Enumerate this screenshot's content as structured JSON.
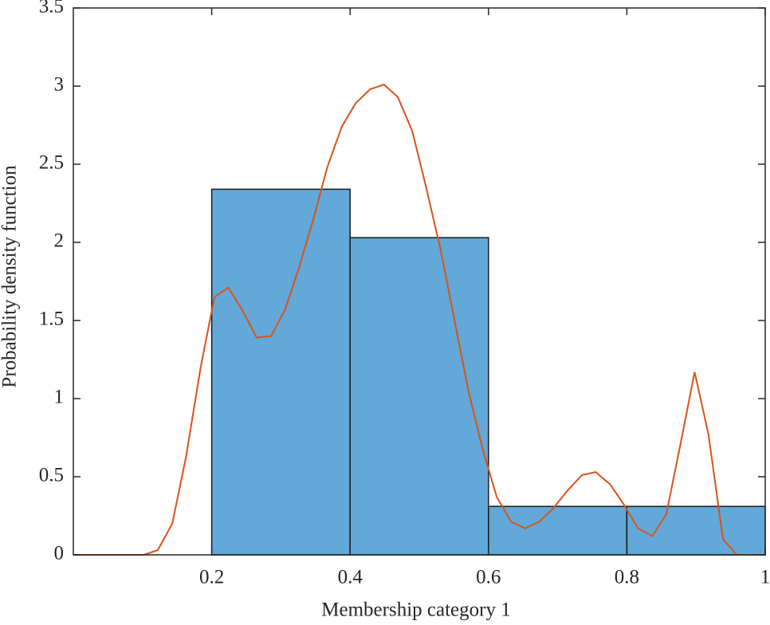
{
  "chart_data": [
    {
      "type": "histogram",
      "xlabel": "Membership category 1",
      "ylabel": "Probability density function",
      "bins": [
        0.2,
        0.4,
        0.6,
        0.8,
        1
      ],
      "values": [
        2.34,
        2.03,
        0.31,
        0.31
      ],
      "color": "#62a8d8",
      "xlim": [
        0,
        1
      ],
      "ylim": [
        0,
        3.5
      ],
      "xticks": [
        0.2,
        0.4,
        0.6,
        0.8,
        1
      ],
      "yticks": [
        0,
        0.5,
        1,
        1.5,
        2,
        2.5,
        3,
        3.5
      ]
    },
    {
      "type": "line",
      "color": "#d95319",
      "x": [
        0,
        0.02,
        0.041,
        0.061,
        0.082,
        0.102,
        0.122,
        0.143,
        0.163,
        0.184,
        0.204,
        0.224,
        0.245,
        0.265,
        0.286,
        0.306,
        0.327,
        0.347,
        0.367,
        0.388,
        0.408,
        0.429,
        0.449,
        0.469,
        0.49,
        0.51,
        0.531,
        0.551,
        0.571,
        0.592,
        0.612,
        0.633,
        0.653,
        0.673,
        0.694,
        0.714,
        0.735,
        0.755,
        0.776,
        0.796,
        0.816,
        0.837,
        0.857,
        0.878,
        0.898,
        0.918,
        0.939,
        0.959,
        0.98,
        1
      ],
      "values": [
        0,
        0,
        0,
        0,
        0,
        0,
        0.03,
        0.2,
        0.63,
        1.2,
        1.65,
        1.71,
        1.56,
        1.39,
        1.4,
        1.57,
        1.85,
        2.15,
        2.48,
        2.74,
        2.89,
        2.98,
        3.01,
        2.93,
        2.71,
        2.35,
        1.95,
        1.5,
        1.05,
        0.67,
        0.37,
        0.21,
        0.17,
        0.21,
        0.3,
        0.41,
        0.51,
        0.53,
        0.45,
        0.32,
        0.17,
        0.12,
        0.26,
        0.72,
        1.17,
        0.77,
        0.1,
        0,
        0,
        0
      ]
    }
  ]
}
